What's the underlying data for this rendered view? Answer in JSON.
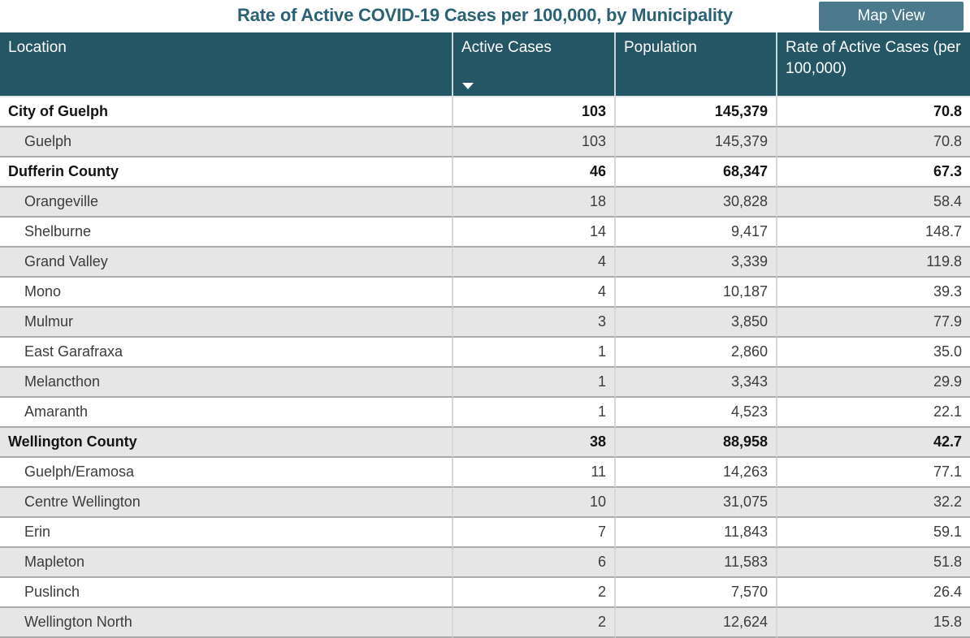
{
  "title": "Rate of Active COVID-19 Cases per 100,000, by Municipality",
  "map_view_button": {
    "label": "Map View"
  },
  "colors": {
    "header_bg": "#255666",
    "header_text": "#FFFFFF",
    "title_text": "#2A6274",
    "button_bg": "#4A7A8C",
    "button_text": "#FFFFFF",
    "row_alt_bg": "#E6E6E6",
    "row_border": "#ABABAB",
    "column_divider": "#D8D8D8"
  },
  "table": {
    "columns": [
      {
        "label": "Location",
        "align": "left"
      },
      {
        "label": "Active Cases",
        "align": "left",
        "sort": "desc",
        "sort_icon": "triangle-down-icon"
      },
      {
        "label": "Population",
        "align": "left"
      },
      {
        "label": "Rate of Active Cases (per 100,000)",
        "align": "left"
      }
    ],
    "rows": [
      {
        "location": "City of Guelph",
        "active_cases": "103",
        "population": "145,379",
        "rate": "70.8",
        "bold": true
      },
      {
        "location": "Guelph",
        "active_cases": "103",
        "population": "145,379",
        "rate": "70.8",
        "bold": false
      },
      {
        "location": "Dufferin County",
        "active_cases": "46",
        "population": "68,347",
        "rate": "67.3",
        "bold": true
      },
      {
        "location": "Orangeville",
        "active_cases": "18",
        "population": "30,828",
        "rate": "58.4",
        "bold": false
      },
      {
        "location": "Shelburne",
        "active_cases": "14",
        "population": "9,417",
        "rate": "148.7",
        "bold": false
      },
      {
        "location": "Grand Valley",
        "active_cases": "4",
        "population": "3,339",
        "rate": "119.8",
        "bold": false
      },
      {
        "location": "Mono",
        "active_cases": "4",
        "population": "10,187",
        "rate": "39.3",
        "bold": false
      },
      {
        "location": "Mulmur",
        "active_cases": "3",
        "population": "3,850",
        "rate": "77.9",
        "bold": false
      },
      {
        "location": "East Garafraxa",
        "active_cases": "1",
        "population": "2,860",
        "rate": "35.0",
        "bold": false
      },
      {
        "location": "Melancthon",
        "active_cases": "1",
        "population": "3,343",
        "rate": "29.9",
        "bold": false
      },
      {
        "location": "Amaranth",
        "active_cases": "1",
        "population": "4,523",
        "rate": "22.1",
        "bold": false
      },
      {
        "location": "Wellington County",
        "active_cases": "38",
        "population": "88,958",
        "rate": "42.7",
        "bold": true
      },
      {
        "location": "Guelph/Eramosa",
        "active_cases": "11",
        "population": "14,263",
        "rate": "77.1",
        "bold": false
      },
      {
        "location": "Centre Wellington",
        "active_cases": "10",
        "population": "31,075",
        "rate": "32.2",
        "bold": false
      },
      {
        "location": "Erin",
        "active_cases": "7",
        "population": "11,843",
        "rate": "59.1",
        "bold": false
      },
      {
        "location": "Mapleton",
        "active_cases": "6",
        "population": "11,583",
        "rate": "51.8",
        "bold": false
      },
      {
        "location": "Puslinch",
        "active_cases": "2",
        "population": "7,570",
        "rate": "26.4",
        "bold": false
      },
      {
        "location": "Wellington North",
        "active_cases": "2",
        "population": "12,624",
        "rate": "15.8",
        "bold": false
      }
    ]
  }
}
